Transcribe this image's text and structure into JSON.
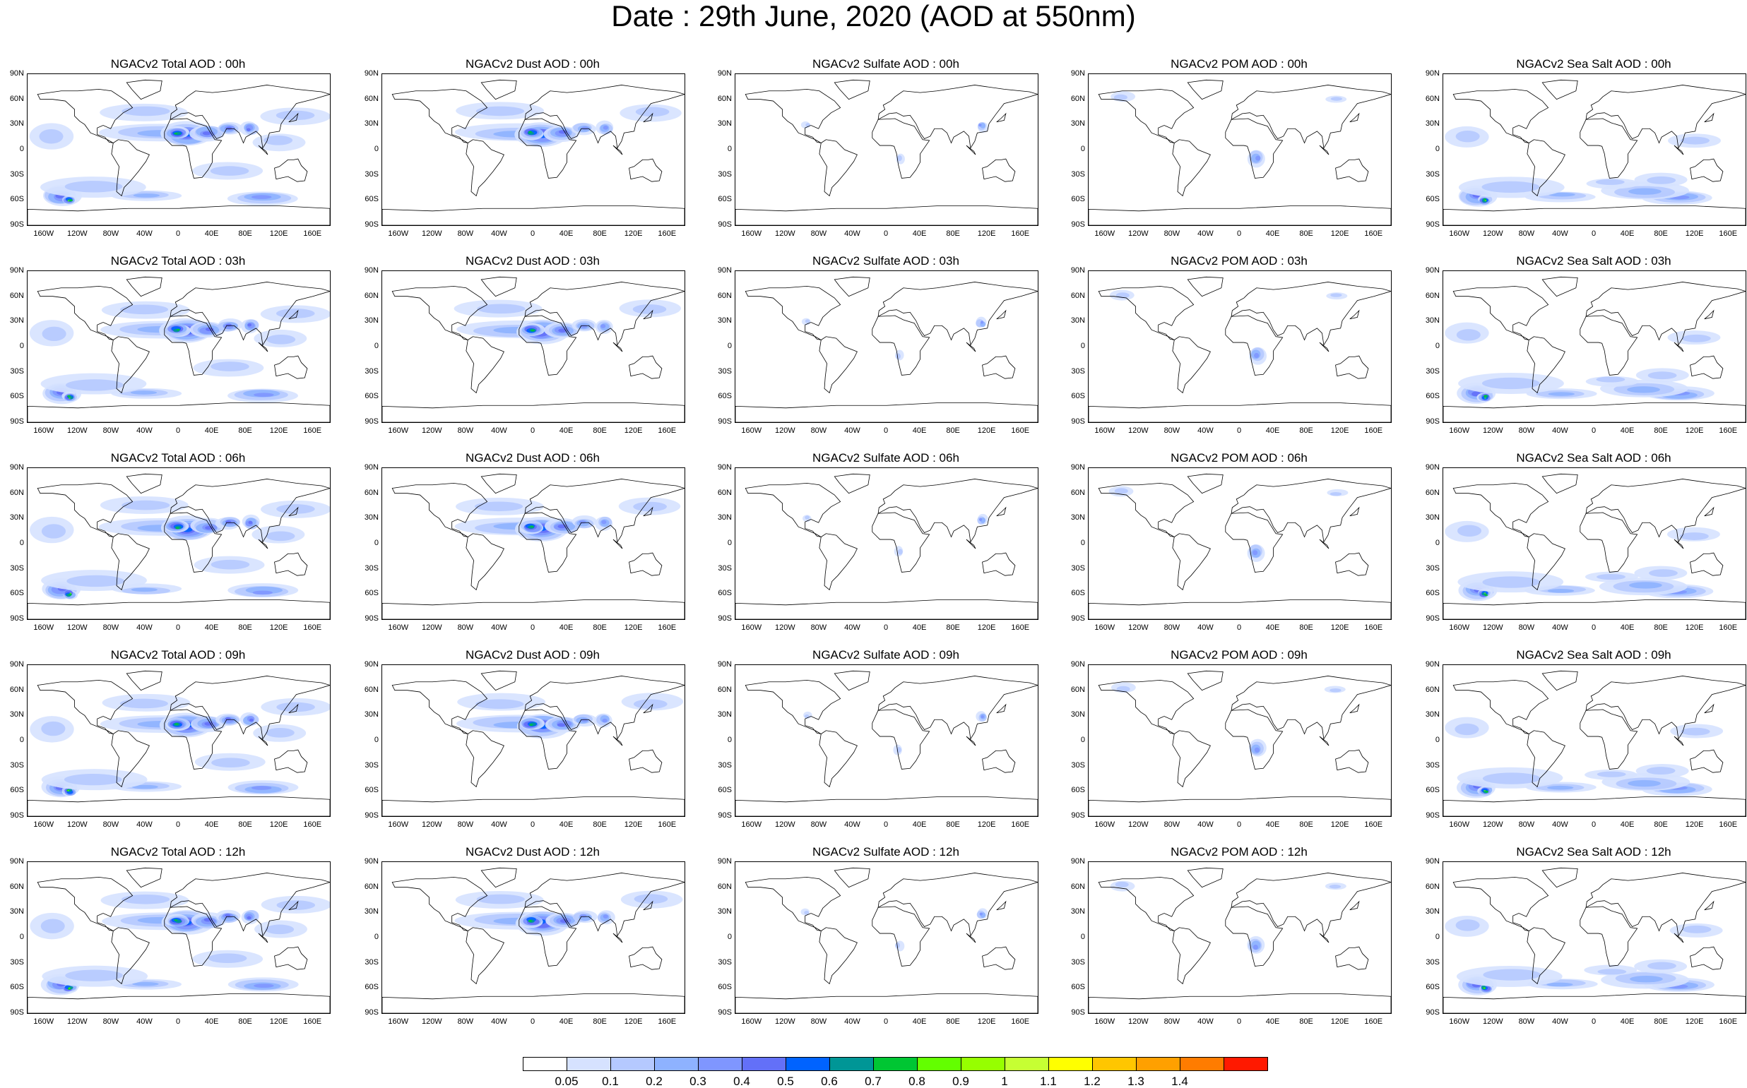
{
  "title": "Date : 29th June, 2020 (AOD at 550nm)",
  "axes": {
    "lat_ticks": [
      "90N",
      "60N",
      "30N",
      "0",
      "30S",
      "60S",
      "90S"
    ],
    "lon_ticks": [
      "160W",
      "120W",
      "80W",
      "40W",
      "0",
      "40E",
      "80E",
      "120E",
      "160E"
    ]
  },
  "panels": [
    [
      "NGACv2 Total AOD : 00h",
      "NGACv2 Dust AOD : 00h",
      "NGACv2 Sulfate AOD : 00h",
      "NGACv2 POM AOD : 00h",
      "NGACv2 Sea Salt AOD : 00h"
    ],
    [
      "NGACv2 Total AOD : 03h",
      "NGACv2 Dust AOD : 03h",
      "NGACv2 Sulfate AOD : 03h",
      "NGACv2 POM AOD : 03h",
      "NGACv2 Sea Salt AOD : 03h"
    ],
    [
      "NGACv2 Total AOD : 06h",
      "NGACv2 Dust AOD : 06h",
      "NGACv2 Sulfate AOD : 06h",
      "NGACv2 POM AOD : 06h",
      "NGACv2 Sea Salt AOD : 06h"
    ],
    [
      "NGACv2 Total AOD : 09h",
      "NGACv2 Dust AOD : 09h",
      "NGACv2 Sulfate AOD : 09h",
      "NGACv2 POM AOD : 09h",
      "NGACv2 Sea Salt  AOD : 09h"
    ],
    [
      "NGACv2 Total AOD  : 12h",
      "NGACv2 Dust AOD : 12h",
      "NGACv2 Sulfate AOD : 12h",
      "NGACv2 POM  AOD : 12h",
      "NGACv2 Sea Salt AOD : 12h"
    ]
  ],
  "colorbar": {
    "labels": [
      "0.05",
      "0.1",
      "0.2",
      "0.3",
      "0.4",
      "0.5",
      "0.6",
      "0.7",
      "0.8",
      "0.9",
      "1",
      "1.1",
      "1.2",
      "1.3",
      "1.4"
    ],
    "colors": [
      "#ffffff",
      "#d6e2ff",
      "#b5c9ff",
      "#8eb2ff",
      "#7f96ff",
      "#6370f8",
      "#0063ff",
      "#009696",
      "#00c633",
      "#63ff00",
      "#96ff00",
      "#c6ff33",
      "#ffff00",
      "#ffc600",
      "#ffa000",
      "#ff7c00",
      "#ff1900"
    ]
  }
}
